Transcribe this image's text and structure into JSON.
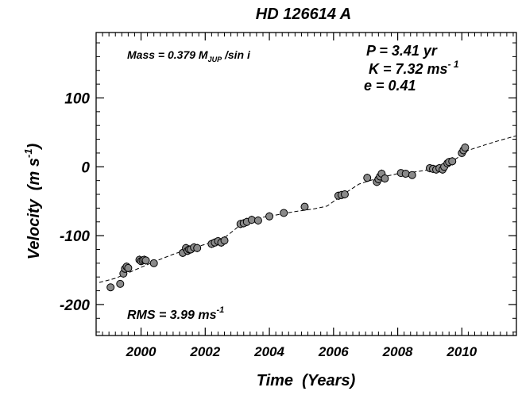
{
  "chart_data": {
    "type": "scatter",
    "title": "HD 126614 A",
    "xlabel": "Time  (Years)",
    "ylabel": "Velocity  (m s",
    "ylabel_sup": "-1",
    "ylabel_close": ")",
    "xlim": [
      1998.6,
      2011.7
    ],
    "ylim": [
      -245,
      195
    ],
    "x_ticks": [
      2000,
      2002,
      2004,
      2006,
      2008,
      2010
    ],
    "x_tick_labels": [
      "2000",
      "2002",
      "2004",
      "2006",
      "2008",
      "2010"
    ],
    "y_ticks": [
      -200,
      -100,
      0,
      100
    ],
    "y_tick_labels": [
      "-200",
      "-100",
      "0",
      "100"
    ],
    "grid": false,
    "annotations": {
      "mass": {
        "text": "Mass = 0.379  M",
        "sub": "JUP",
        "tail": " /sin i"
      },
      "period": {
        "text": "P = 3.41 yr"
      },
      "amplitude": {
        "text": "K = 7.32 ms",
        "sup": "- 1"
      },
      "eccentricity": {
        "text": "e = 0.41"
      },
      "rms": {
        "text": "RMS = 3.99 ms",
        "sup": "-1"
      }
    },
    "series": [
      {
        "kind": "observations",
        "x": [
          1999.05,
          1999.35,
          1999.45,
          1999.5,
          1999.55,
          1999.6,
          1999.95,
          2000.0,
          2000.05,
          2000.1,
          2000.15,
          2000.4,
          2001.3,
          2001.4,
          2001.45,
          2001.5,
          2001.55,
          2001.65,
          2001.75,
          2002.2,
          2002.3,
          2002.4,
          2002.5,
          2002.6,
          2003.1,
          2003.2,
          2003.3,
          2003.45,
          2003.65,
          2004.0,
          2004.45,
          2005.1,
          2006.15,
          2006.25,
          2006.35,
          2007.05,
          2007.35,
          2007.4,
          2007.45,
          2007.5,
          2007.6,
          2008.1,
          2008.25,
          2008.45,
          2009.0,
          2009.1,
          2009.2,
          2009.3,
          2009.4,
          2009.45,
          2009.55,
          2009.6,
          2009.7,
          2010.0,
          2010.05,
          2010.1
        ],
        "y": [
          -175,
          -170,
          -155,
          -148,
          -145,
          -147,
          -135,
          -137,
          -136,
          -135,
          -136,
          -140,
          -125,
          -118,
          -122,
          -120,
          -120,
          -117,
          -118,
          -112,
          -110,
          -108,
          -110,
          -107,
          -83,
          -82,
          -80,
          -77,
          -78,
          -72,
          -67,
          -58,
          -42,
          -41,
          -40,
          -16,
          -22,
          -18,
          -14,
          -10,
          -17,
          -9,
          -10,
          -12,
          -2,
          -3,
          -4,
          -2,
          -4,
          0,
          5,
          7,
          8,
          20,
          24,
          28
        ],
        "error": [
          3,
          3,
          6,
          6,
          6,
          6,
          6,
          6,
          6,
          6,
          6,
          3,
          6,
          6,
          6,
          6,
          6,
          6,
          6,
          6,
          6,
          6,
          6,
          6,
          6,
          6,
          6,
          6,
          6,
          6,
          3,
          3,
          6,
          6,
          6,
          6,
          6,
          6,
          6,
          6,
          6,
          3,
          3,
          3,
          6,
          6,
          6,
          6,
          6,
          6,
          6,
          6,
          6,
          6,
          6,
          6
        ],
        "marker_fill": "#8a8a8a",
        "marker_edge": "#000000"
      },
      {
        "kind": "model",
        "line_style": "dashed",
        "color": "#000000",
        "x": [
          1998.7,
          1999.2,
          1999.8,
          2000.4,
          2001.0,
          2001.6,
          2002.2,
          2002.6,
          2002.9,
          2003.2,
          2003.6,
          2004.2,
          2004.8,
          2005.4,
          2005.8,
          2006.1,
          2006.4,
          2006.8,
          2007.4,
          2008.0,
          2008.6,
          2009.0,
          2009.3,
          2009.6,
          2009.9,
          2010.2,
          2010.8,
          2011.3,
          2011.7
        ],
        "y": [
          -168,
          -162,
          -150,
          -138,
          -127,
          -118,
          -110,
          -103,
          -92,
          -80,
          -75,
          -70,
          -65,
          -61,
          -57,
          -47,
          -37,
          -25,
          -16,
          -10,
          -7,
          -4,
          0,
          6,
          14,
          24,
          33,
          40,
          45
        ]
      }
    ]
  }
}
